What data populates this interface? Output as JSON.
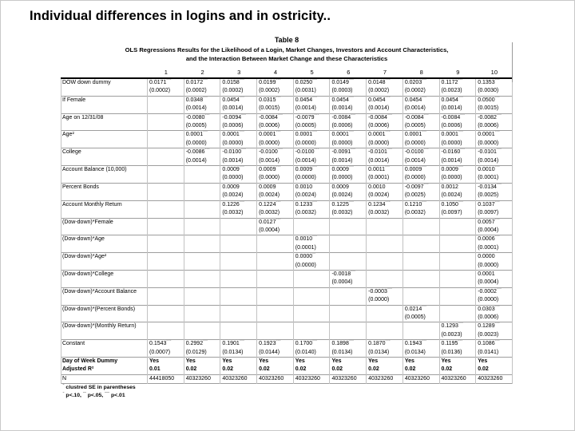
{
  "slide": {
    "title": "Individual differences in logins and in ostricity.."
  },
  "table": {
    "title": "Table 8",
    "subtitle_line1": "OLS Regressions Results for the Likelihood of a Login, Market Changes, Investors and Account Characteristics,",
    "subtitle_line2": "and the Interaction Between Market Change and these Characteristics",
    "column_numbers": [
      "1",
      "2",
      "3",
      "4",
      "5",
      "6",
      "7",
      "8",
      "9",
      "10"
    ],
    "rows": [
      {
        "label": "DOW down dummy",
        "coef": [
          "0.0171***",
          "0.0172***",
          "0.0158***",
          "0.0199***",
          "0.0250***",
          "0.0149***",
          "0.0148***",
          "0.0203***",
          "0.1172***",
          "0.1353***"
        ],
        "se": [
          "(0.0002)",
          "(0.0002)",
          "(0.0002)",
          "(0.0002)",
          "(0.0031)",
          "(0.0003)",
          "(0.0002)",
          "(0.0002)",
          "(0.0023)",
          "(0.0030)"
        ]
      },
      {
        "label": "If Female",
        "coef": [
          "",
          "0.0348***",
          "0.0454***",
          "0.0315***",
          "0.0454***",
          "0.0454***",
          "0.0454***",
          "0.0454***",
          "0.0454***",
          "0.0500***"
        ],
        "se": [
          "",
          "(0.0014)",
          "(0.0014)",
          "(0.0015)",
          "(0.0014)",
          "(0.0014)",
          "(0.0014)",
          "(0.0014)",
          "(0.0014)",
          "(0.0015)"
        ]
      },
      {
        "label": "Age on 12/31/08",
        "coef": [
          "",
          "-0.0080***",
          "-0.0094***",
          "-0.0084***",
          "-0.0079***",
          "-0.0084***",
          "-0.0084***",
          "-0.0084***",
          "-0.0084***",
          "-0.0082***"
        ],
        "se": [
          "",
          "(0.0005)",
          "(0.0006)",
          "(0.0006)",
          "(0.0005)",
          "(0.0006)",
          "(0.0006)",
          "(0.0005)",
          "(0.0006)",
          "(0.0006)"
        ]
      },
      {
        "label": "Age²",
        "coef": [
          "",
          "0.0001***",
          "0.0001***",
          "0.0001***",
          "0.0001***",
          "0.0001***",
          "0.0001***",
          "0.0001***",
          "0.0001***",
          "0.0001***"
        ],
        "se": [
          "",
          "(0.0000)",
          "(0.0000)",
          "(0.0000)",
          "(0.0000)",
          "(0.0000)",
          "(0.0000)",
          "(0.0000)",
          "(0.0000)",
          "(0.0000)"
        ]
      },
      {
        "label": "College",
        "coef": [
          "",
          "-0.0086***",
          "-0.0100***",
          "-0.0100***",
          "-0.0100***",
          "-0.0091***",
          "-0.0101***",
          "-0.0100***",
          "-0.0160***",
          "-0.0101***"
        ],
        "se": [
          "",
          "(0.0014)",
          "(0.0014)",
          "(0.0014)",
          "(0.0014)",
          "(0.0014)",
          "(0.0014)",
          "(0.0014)",
          "(0.0014)",
          "(0.0014)"
        ]
      },
      {
        "label": "Account Balance (10,000)",
        "coef": [
          "",
          "",
          "0.0009***",
          "0.0009***",
          "0.0009***",
          "0.0009***",
          "0.0011***",
          "0.0009***",
          "0.0009***",
          "0.0010***"
        ],
        "se": [
          "",
          "",
          "(0.0000)",
          "(0.0000)",
          "(0.0000)",
          "(0.0000)",
          "(0.0001)",
          "(0.0000)",
          "(0.0000)",
          "(0.0001)"
        ]
      },
      {
        "label": "Percent Bonds",
        "coef": [
          "",
          "",
          "0.0009",
          "0.0009",
          "0.0010",
          "0.0009",
          "0.0010",
          "-0.0097***",
          "0.0012",
          "-0.0134***"
        ],
        "se": [
          "",
          "",
          "(0.0024)",
          "(0.0024)",
          "(0.0024)",
          "(0.0024)",
          "(0.0024)",
          "(0.0025)",
          "(0.0024)",
          "(0.0025)"
        ]
      },
      {
        "label": "Account Monthly Return",
        "coef": [
          "",
          "",
          "0.1226***",
          "0.1224***",
          "0.1233***",
          "0.1225***",
          "0.1234***",
          "0.1210***",
          "0.1050***",
          "0.1037***"
        ],
        "se": [
          "",
          "",
          "(0.0032)",
          "(0.0032)",
          "(0.0032)",
          "(0.0032)",
          "(0.0032)",
          "(0.0032)",
          "(0.0097)",
          "(0.0097)"
        ]
      },
      {
        "label": "(Dow-down)*Female",
        "coef": [
          "",
          "",
          "",
          "0.0127***",
          "",
          "",
          "",
          "",
          "",
          "0.0057***"
        ],
        "se": [
          "",
          "",
          "",
          "(0.0004)",
          "",
          "",
          "",
          "",
          "",
          "(0.0004)"
        ]
      },
      {
        "label": "(Dow-down)*Age",
        "coef": [
          "",
          "",
          "",
          "",
          "0.0010***",
          "",
          "",
          "",
          "",
          "0.0006***"
        ],
        "se": [
          "",
          "",
          "",
          "",
          "(0.0001)",
          "",
          "",
          "",
          "",
          "(0.0001)"
        ]
      },
      {
        "label": "(Dow-down)*Age²",
        "coef": [
          "",
          "",
          "",
          "",
          "0.0000**",
          "",
          "",
          "",
          "",
          "0.0000"
        ],
        "se": [
          "",
          "",
          "",
          "",
          "(0.0000)",
          "",
          "",
          "",
          "",
          "(0.0000)"
        ]
      },
      {
        "label": "(Dow-down)*College",
        "coef": [
          "",
          "",
          "",
          "",
          "",
          "-0.0018***",
          "",
          "",
          "",
          "0.0001"
        ],
        "se": [
          "",
          "",
          "",
          "",
          "",
          "(0.0004)",
          "",
          "",
          "",
          "(0.0004)"
        ]
      },
      {
        "label": "(Dow-down)*Account Balance",
        "coef": [
          "",
          "",
          "",
          "",
          "",
          "",
          "-0.0003***",
          "",
          "",
          "-0.0002***"
        ],
        "se": [
          "",
          "",
          "",
          "",
          "",
          "",
          "(0.0000)",
          "",
          "",
          "(0.0000)"
        ]
      },
      {
        "label": "(Dow-down)*(Percent Bonds)",
        "coef": [
          "",
          "",
          "",
          "",
          "",
          "",
          "",
          "0.0214***",
          "",
          "0.0303***"
        ],
        "se": [
          "",
          "",
          "",
          "",
          "",
          "",
          "",
          "(0.0005)",
          "",
          "(0.0006)"
        ]
      },
      {
        "label": "(Dow-down)*(Monthly Return)",
        "coef": [
          "",
          "",
          "",
          "",
          "",
          "",
          "",
          "",
          "0.1293***",
          "0.1289***"
        ],
        "se": [
          "",
          "",
          "",
          "",
          "",
          "",
          "",
          "",
          "(0.0023)",
          "(0.0023)"
        ]
      },
      {
        "label": "Constant",
        "coef": [
          "0.1543***",
          "0.2992***",
          "0.1901***",
          "0.1923***",
          "0.1700***",
          "0.1898***",
          "0.1870***",
          "0.1943***",
          "0.1195***",
          "0.1086***"
        ],
        "se": [
          "(0.0007)",
          "(0.0129)",
          "(0.0134)",
          "(0.0144)",
          "(0.0140)",
          "(0.0134)",
          "(0.0134)",
          "(0.0134)",
          "(0.0136)",
          "(0.0141)"
        ]
      }
    ],
    "bottom_rows": [
      {
        "label": "Day of Week Dummy",
        "values": [
          "Yes",
          "Yes",
          "Yes",
          "Yes",
          "Yes",
          "Yes",
          "Yes",
          "Yes",
          "Yes",
          "Yes"
        ]
      },
      {
        "label": "Adjusted R²",
        "values": [
          "0.01",
          "0.02",
          "0.02",
          "0.02",
          "0.02",
          "0.02",
          "0.02",
          "0.02",
          "0.02",
          "0.02"
        ]
      },
      {
        "label": "N",
        "values": [
          "44418050",
          "40323260",
          "40323260",
          "40323260",
          "40323260",
          "40323260",
          "40323260",
          "40323260",
          "40323260",
          "40323260"
        ]
      }
    ],
    "footnotes": [
      "* clustred SE in parentheses",
      "* p<.10, ** p<.05, *** p<.01"
    ]
  }
}
